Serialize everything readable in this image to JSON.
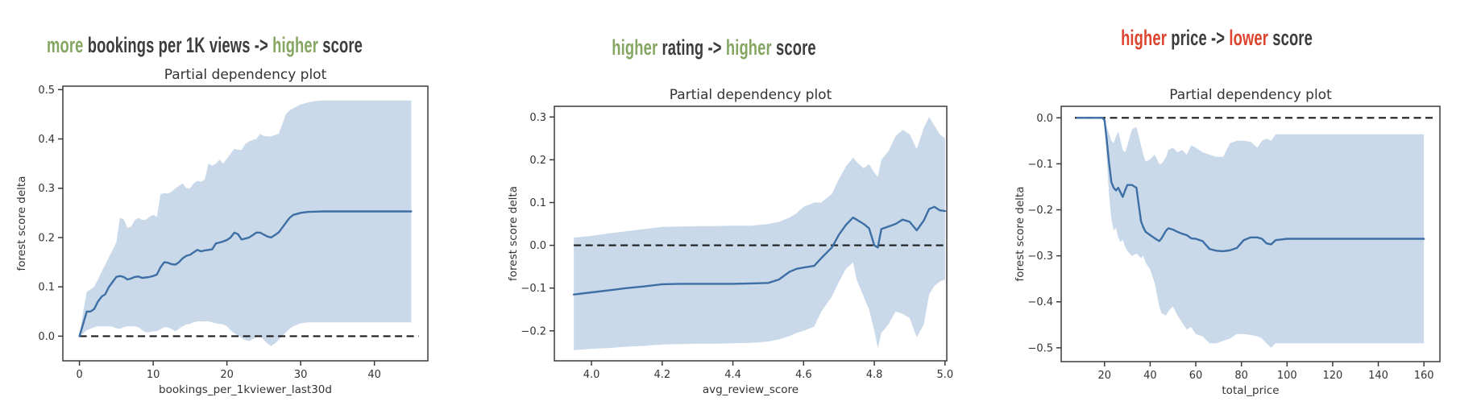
{
  "palette": {
    "green": "#85a663",
    "red": "#dc4430",
    "dark": "#3c3c3c",
    "line_blue": "#3d6fa5",
    "band_blue": "#c9d9e9",
    "axis_dark": "#3a3a3a",
    "zero_dash": "#1c1c1c",
    "chart_text": "#333333"
  },
  "headings": [
    {
      "segments": [
        {
          "text": "more",
          "color": "green"
        },
        {
          "text": " bookings per 1K views -> ",
          "color": "dark"
        },
        {
          "text": "higher",
          "color": "green"
        },
        {
          "text": " score",
          "color": "dark"
        }
      ]
    },
    {
      "segments": [
        {
          "text": "higher",
          "color": "green"
        },
        {
          "text": " rating -> ",
          "color": "dark"
        },
        {
          "text": "higher",
          "color": "green"
        },
        {
          "text": " score",
          "color": "dark"
        }
      ]
    },
    {
      "segments": [
        {
          "text": "higher",
          "color": "red"
        },
        {
          "text": " price -> ",
          "color": "dark"
        },
        {
          "text": "lower",
          "color": "red"
        },
        {
          "text": " score",
          "color": "dark"
        }
      ]
    }
  ],
  "chart_data": [
    {
      "type": "line",
      "title": "Partial dependency plot",
      "xlabel": "bookings_per_1kviewer_last30d",
      "ylabel": "forest score delta",
      "legend": null,
      "grid": false,
      "xlim": [
        -2.25,
        47.25
      ],
      "ylim": [
        -0.05,
        0.507
      ],
      "xticks": [
        0,
        10,
        20,
        30,
        40
      ],
      "xtick_labels": [
        "0",
        "10",
        "20",
        "30",
        "40"
      ],
      "yticks": [
        0.0,
        0.1,
        0.2,
        0.3,
        0.4,
        0.5
      ],
      "ytick_labels": [
        "0.0",
        "0.1",
        "0.2",
        "0.3",
        "0.4",
        "0.5"
      ],
      "zero_line": {
        "y": 0,
        "x0": 0,
        "x1": 46,
        "style": "dashed"
      },
      "x": [
        0,
        0.5,
        1,
        1.5,
        2,
        2.5,
        3,
        3.5,
        4,
        4.5,
        5,
        5.5,
        6,
        6.5,
        7,
        7.5,
        8,
        8.5,
        9,
        9.5,
        10,
        10.5,
        11,
        11.5,
        12,
        12.5,
        13,
        13.5,
        14,
        14.5,
        15,
        15.5,
        16,
        16.5,
        17,
        17.5,
        18,
        18.5,
        19,
        19.5,
        20,
        20.5,
        21,
        21.5,
        22,
        22.5,
        23,
        23.5,
        24,
        24.5,
        25,
        25.5,
        26,
        26.5,
        27,
        27.5,
        28,
        28.5,
        29,
        30,
        31,
        32,
        33,
        35,
        40,
        45
      ],
      "line": [
        0.0,
        0.025,
        0.05,
        0.05,
        0.055,
        0.07,
        0.08,
        0.085,
        0.1,
        0.11,
        0.12,
        0.122,
        0.12,
        0.115,
        0.117,
        0.12,
        0.121,
        0.118,
        0.119,
        0.12,
        0.122,
        0.125,
        0.14,
        0.15,
        0.149,
        0.146,
        0.145,
        0.15,
        0.158,
        0.163,
        0.165,
        0.17,
        0.175,
        0.172,
        0.174,
        0.175,
        0.176,
        0.188,
        0.19,
        0.192,
        0.195,
        0.2,
        0.21,
        0.207,
        0.196,
        0.198,
        0.2,
        0.205,
        0.21,
        0.21,
        0.206,
        0.202,
        0.2,
        0.205,
        0.21,
        0.22,
        0.23,
        0.24,
        0.246,
        0.25,
        0.252,
        0.2525,
        0.253,
        0.253,
        0.253,
        0.253
      ],
      "band_upper": [
        0.0,
        0.05,
        0.09,
        0.095,
        0.1,
        0.115,
        0.13,
        0.145,
        0.16,
        0.175,
        0.19,
        0.24,
        0.237,
        0.22,
        0.222,
        0.235,
        0.24,
        0.236,
        0.236,
        0.242,
        0.246,
        0.242,
        0.288,
        0.29,
        0.289,
        0.293,
        0.3,
        0.305,
        0.31,
        0.3,
        0.3,
        0.31,
        0.315,
        0.313,
        0.318,
        0.35,
        0.346,
        0.35,
        0.358,
        0.35,
        0.36,
        0.37,
        0.38,
        0.378,
        0.378,
        0.39,
        0.395,
        0.398,
        0.4,
        0.41,
        0.406,
        0.405,
        0.405,
        0.408,
        0.41,
        0.43,
        0.45,
        0.458,
        0.462,
        0.47,
        0.474,
        0.477,
        0.478,
        0.478,
        0.478,
        0.478
      ],
      "band_lower": [
        0.0,
        0.005,
        0.012,
        0.015,
        0.018,
        0.02,
        0.02,
        0.02,
        0.02,
        0.019,
        0.016,
        0.015,
        0.018,
        0.02,
        0.02,
        0.02,
        0.018,
        0.012,
        0.008,
        0.008,
        0.01,
        0.01,
        0.014,
        0.018,
        0.018,
        0.014,
        0.01,
        0.015,
        0.02,
        0.024,
        0.025,
        0.028,
        0.03,
        0.03,
        0.03,
        0.03,
        0.028,
        0.026,
        0.025,
        0.024,
        0.02,
        0.012,
        0.006,
        0.002,
        -0.004,
        -0.008,
        -0.01,
        -0.006,
        -0.002,
        0.0,
        -0.008,
        -0.015,
        -0.02,
        -0.015,
        -0.008,
        0.0,
        0.008,
        0.015,
        0.02,
        0.026,
        0.028,
        0.028,
        0.028,
        0.028,
        0.028,
        0.028
      ]
    },
    {
      "type": "line",
      "title": "Partial dependency plot",
      "xlabel": "avg_review_score",
      "ylabel": "forest score delta",
      "legend": null,
      "grid": false,
      "xlim": [
        3.895,
        5.005
      ],
      "ylim": [
        -0.27,
        0.325
      ],
      "xticks": [
        4.0,
        4.2,
        4.4,
        4.6,
        4.8,
        5.0
      ],
      "xtick_labels": [
        "4.0",
        "4.2",
        "4.4",
        "4.6",
        "4.8",
        "5.0"
      ],
      "yticks": [
        -0.2,
        -0.1,
        0.0,
        0.1,
        0.2,
        0.3
      ],
      "ytick_labels": [
        "−0.2",
        "−0.1",
        "0.0",
        "0.1",
        "0.2",
        "0.3"
      ],
      "zero_line": {
        "y": 0,
        "x0": 3.95,
        "x1": 5.0,
        "style": "dashed"
      },
      "x": [
        3.95,
        4.0,
        4.05,
        4.1,
        4.15,
        4.2,
        4.25,
        4.3,
        4.35,
        4.4,
        4.45,
        4.5,
        4.53,
        4.56,
        4.58,
        4.6,
        4.63,
        4.65,
        4.68,
        4.7,
        4.72,
        4.74,
        4.75,
        4.77,
        4.785,
        4.8,
        4.81,
        4.82,
        4.84,
        4.86,
        4.88,
        4.9,
        4.92,
        4.94,
        4.955,
        4.97,
        4.985,
        5.0
      ],
      "line": [
        -0.115,
        -0.11,
        -0.105,
        -0.1,
        -0.096,
        -0.091,
        -0.09,
        -0.09,
        -0.09,
        -0.09,
        -0.089,
        -0.088,
        -0.08,
        -0.062,
        -0.055,
        -0.052,
        -0.048,
        -0.03,
        -0.005,
        0.025,
        0.048,
        0.065,
        0.06,
        0.05,
        0.04,
        0.0,
        -0.005,
        0.038,
        0.044,
        0.05,
        0.06,
        0.055,
        0.035,
        0.058,
        0.085,
        0.09,
        0.082,
        0.08
      ],
      "band_upper": [
        0.018,
        0.022,
        0.028,
        0.033,
        0.038,
        0.043,
        0.044,
        0.045,
        0.045,
        0.046,
        0.046,
        0.05,
        0.055,
        0.065,
        0.075,
        0.09,
        0.1,
        0.1,
        0.12,
        0.155,
        0.185,
        0.205,
        0.195,
        0.18,
        0.19,
        0.17,
        0.16,
        0.2,
        0.22,
        0.255,
        0.27,
        0.26,
        0.225,
        0.275,
        0.3,
        0.28,
        0.26,
        0.25
      ],
      "band_lower": [
        -0.245,
        -0.242,
        -0.24,
        -0.237,
        -0.235,
        -0.232,
        -0.231,
        -0.23,
        -0.23,
        -0.229,
        -0.228,
        -0.225,
        -0.22,
        -0.212,
        -0.205,
        -0.2,
        -0.19,
        -0.155,
        -0.12,
        -0.085,
        -0.055,
        -0.04,
        -0.08,
        -0.12,
        -0.15,
        -0.2,
        -0.24,
        -0.205,
        -0.185,
        -0.155,
        -0.16,
        -0.17,
        -0.215,
        -0.185,
        -0.115,
        -0.095,
        -0.085,
        -0.08
      ]
    },
    {
      "type": "line",
      "title": "Partial dependency plot",
      "xlabel": "total_price",
      "ylabel": "forest score delta",
      "legend": null,
      "grid": false,
      "xlim": [
        1,
        167
      ],
      "ylim": [
        -0.53,
        0.025
      ],
      "xticks": [
        20,
        40,
        60,
        80,
        100,
        120,
        140,
        160
      ],
      "xtick_labels": [
        "20",
        "40",
        "60",
        "80",
        "100",
        "120",
        "140",
        "160"
      ],
      "yticks": [
        -0.5,
        -0.4,
        -0.3,
        -0.2,
        -0.1,
        0.0
      ],
      "ytick_labels": [
        "−0.5",
        "−0.4",
        "−0.3",
        "−0.2",
        "−0.1",
        "0.0"
      ],
      "zero_line": {
        "y": 0,
        "x0": 7,
        "x1": 164,
        "style": "dashed"
      },
      "x": [
        8,
        12,
        16,
        19,
        20,
        21,
        22,
        23,
        24,
        25,
        26,
        27,
        28,
        29,
        30,
        32,
        34,
        35,
        36,
        37,
        38,
        40,
        42,
        44,
        45,
        47,
        48,
        50,
        52,
        54,
        56,
        58,
        60,
        63,
        66,
        69,
        72,
        75,
        78,
        81,
        84,
        87,
        89,
        91,
        93,
        95,
        100,
        120,
        160
      ],
      "line": [
        0,
        0,
        0,
        0,
        -0.005,
        -0.05,
        -0.1,
        -0.14,
        -0.152,
        -0.158,
        -0.152,
        -0.162,
        -0.172,
        -0.158,
        -0.146,
        -0.146,
        -0.152,
        -0.19,
        -0.225,
        -0.238,
        -0.248,
        -0.255,
        -0.262,
        -0.268,
        -0.262,
        -0.245,
        -0.24,
        -0.243,
        -0.248,
        -0.252,
        -0.255,
        -0.262,
        -0.263,
        -0.268,
        -0.285,
        -0.289,
        -0.29,
        -0.288,
        -0.283,
        -0.266,
        -0.26,
        -0.26,
        -0.263,
        -0.273,
        -0.275,
        -0.266,
        -0.263,
        -0.263,
        -0.263
      ],
      "band_upper": [
        0,
        0,
        0,
        0,
        -0.002,
        -0.02,
        -0.035,
        -0.05,
        -0.055,
        -0.04,
        -0.03,
        -0.05,
        -0.07,
        -0.075,
        -0.06,
        -0.025,
        -0.02,
        -0.04,
        -0.06,
        -0.08,
        -0.095,
        -0.09,
        -0.08,
        -0.1,
        -0.1,
        -0.085,
        -0.07,
        -0.065,
        -0.075,
        -0.07,
        -0.08,
        -0.06,
        -0.065,
        -0.075,
        -0.08,
        -0.085,
        -0.085,
        -0.055,
        -0.05,
        -0.05,
        -0.052,
        -0.065,
        -0.05,
        -0.045,
        -0.05,
        -0.036,
        -0.036,
        -0.036,
        -0.036
      ],
      "band_lower": [
        0,
        0,
        0,
        0,
        -0.01,
        -0.09,
        -0.17,
        -0.22,
        -0.245,
        -0.24,
        -0.26,
        -0.27,
        -0.265,
        -0.28,
        -0.29,
        -0.3,
        -0.295,
        -0.3,
        -0.305,
        -0.3,
        -0.315,
        -0.33,
        -0.36,
        -0.41,
        -0.425,
        -0.43,
        -0.42,
        -0.41,
        -0.43,
        -0.445,
        -0.46,
        -0.455,
        -0.47,
        -0.475,
        -0.49,
        -0.49,
        -0.485,
        -0.48,
        -0.47,
        -0.47,
        -0.472,
        -0.475,
        -0.48,
        -0.49,
        -0.5,
        -0.49,
        -0.49,
        -0.49,
        -0.49
      ]
    }
  ]
}
